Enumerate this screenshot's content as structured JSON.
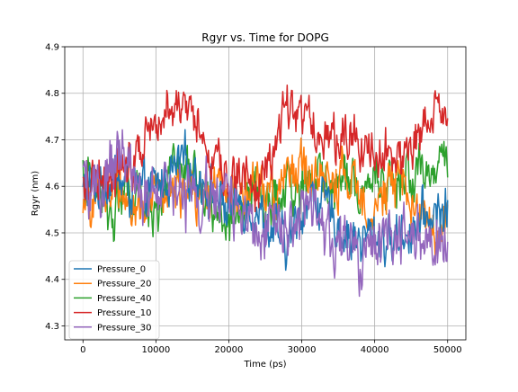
{
  "chart_data": {
    "type": "line",
    "title": "Rgyr vs. Time for DOPG",
    "xlabel": "Time (ps)",
    "ylabel": "Rgyr (nm)",
    "xlim": [
      -2500,
      52500
    ],
    "ylim": [
      4.27,
      4.9
    ],
    "xticks": [
      0,
      10000,
      20000,
      30000,
      40000,
      50000
    ],
    "yticks": [
      4.3,
      4.4,
      4.5,
      4.6,
      4.7,
      4.8,
      4.9
    ],
    "grid": true,
    "legend_position": "lower-left",
    "x": [
      0,
      2000,
      4000,
      6000,
      8000,
      10000,
      12000,
      14000,
      16000,
      18000,
      20000,
      22000,
      24000,
      26000,
      28000,
      30000,
      32000,
      34000,
      36000,
      38000,
      40000,
      42000,
      44000,
      46000,
      48000,
      50000
    ],
    "series": [
      {
        "name": "Pressure_0",
        "color": "#1f77b4",
        "amplitude": 0.05,
        "values": [
          4.59,
          4.6,
          4.62,
          4.6,
          4.58,
          4.6,
          4.62,
          4.65,
          4.62,
          4.58,
          4.55,
          4.57,
          4.55,
          4.5,
          4.47,
          4.55,
          4.58,
          4.54,
          4.5,
          4.48,
          4.5,
          4.48,
          4.5,
          4.52,
          4.54,
          4.55
        ]
      },
      {
        "name": "Pressure_20",
        "color": "#ff7f0e",
        "amplitude": 0.05,
        "values": [
          4.52,
          4.6,
          4.6,
          4.58,
          4.55,
          4.58,
          4.6,
          4.58,
          4.56,
          4.6,
          4.6,
          4.58,
          4.6,
          4.58,
          4.62,
          4.64,
          4.62,
          4.6,
          4.62,
          4.58,
          4.56,
          4.6,
          4.6,
          4.56,
          4.5,
          4.52
        ]
      },
      {
        "name": "Pressure_40",
        "color": "#2ca02c",
        "amplitude": 0.05,
        "values": [
          4.62,
          4.6,
          4.55,
          4.58,
          4.56,
          4.55,
          4.62,
          4.64,
          4.6,
          4.56,
          4.5,
          4.56,
          4.58,
          4.56,
          4.58,
          4.6,
          4.62,
          4.6,
          4.62,
          4.6,
          4.62,
          4.6,
          4.62,
          4.62,
          4.64,
          4.66
        ]
      },
      {
        "name": "Pressure_10",
        "color": "#d62728",
        "amplitude": 0.05,
        "values": [
          4.6,
          4.64,
          4.62,
          4.65,
          4.7,
          4.76,
          4.78,
          4.76,
          4.72,
          4.66,
          4.62,
          4.62,
          4.6,
          4.68,
          4.78,
          4.76,
          4.72,
          4.7,
          4.72,
          4.7,
          4.68,
          4.66,
          4.68,
          4.7,
          4.74,
          4.76
        ]
      },
      {
        "name": "Pressure_30",
        "color": "#9467bd",
        "amplitude": 0.06,
        "values": [
          4.6,
          4.58,
          4.64,
          4.66,
          4.6,
          4.56,
          4.6,
          4.58,
          4.56,
          4.58,
          4.56,
          4.54,
          4.52,
          4.54,
          4.52,
          4.56,
          4.52,
          4.48,
          4.48,
          4.42,
          4.46,
          4.48,
          4.5,
          4.48,
          4.46,
          4.5
        ]
      }
    ]
  }
}
